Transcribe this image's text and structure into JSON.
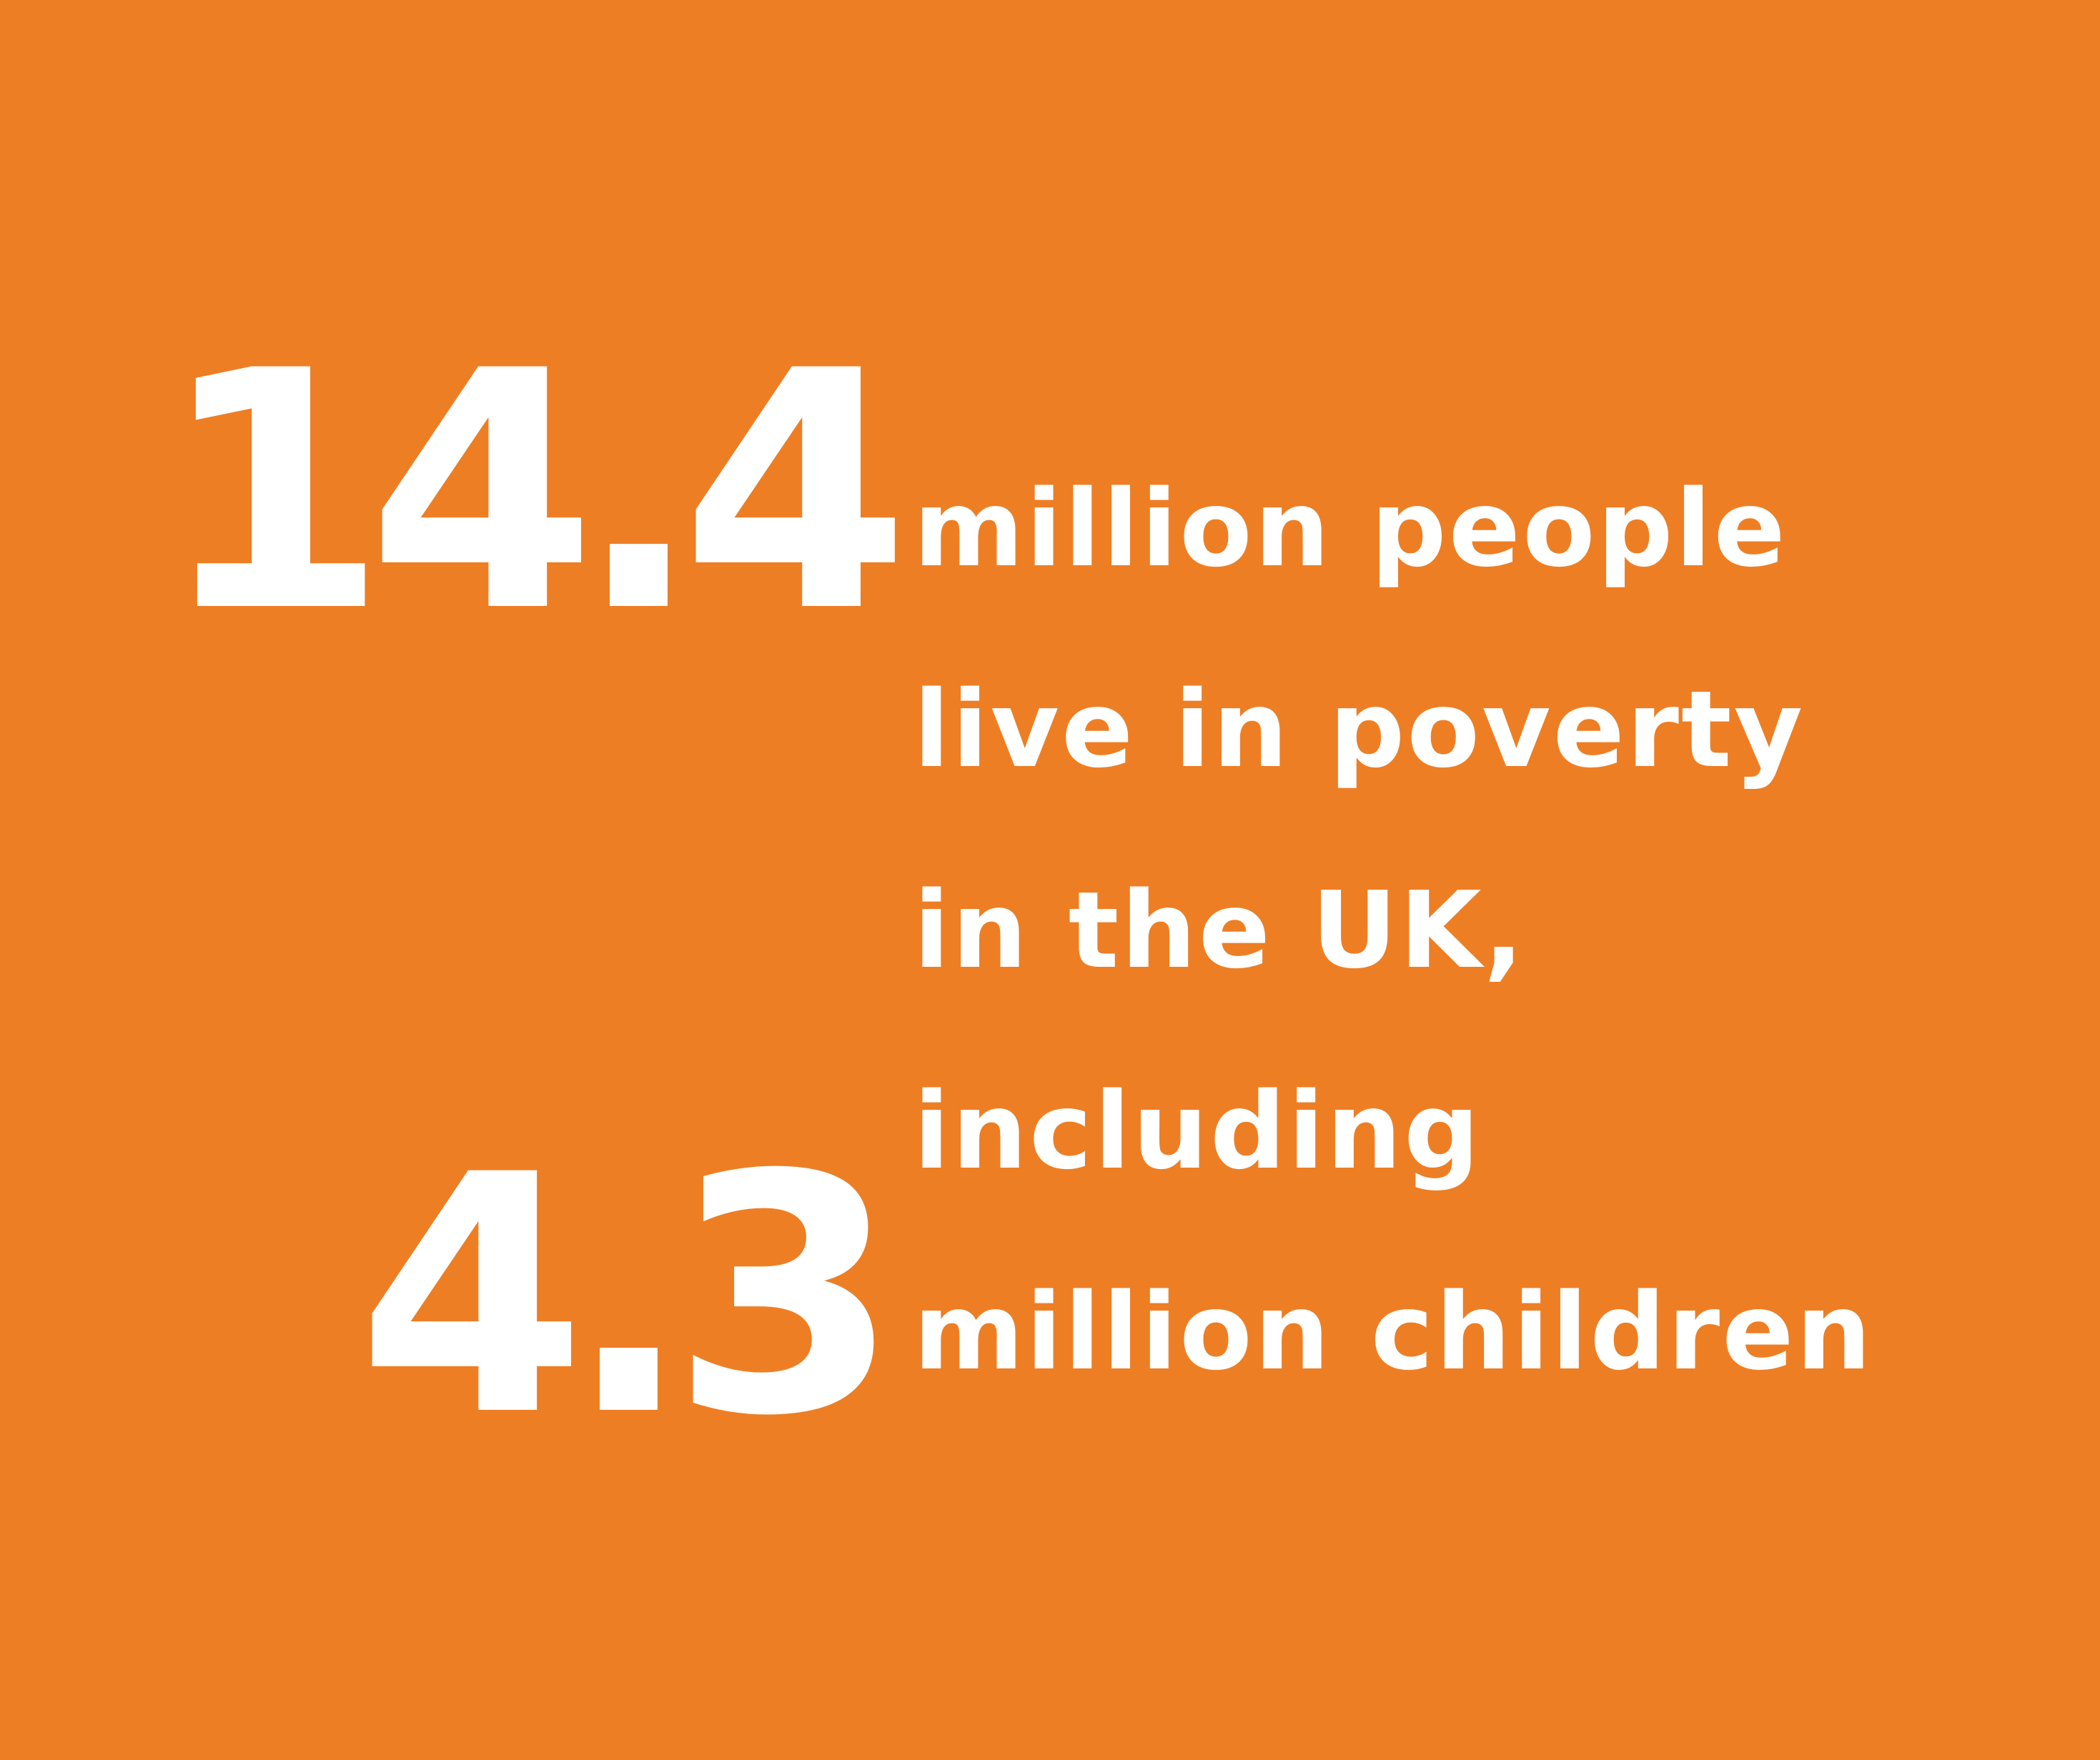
{
  "background_color": "#EE7E24",
  "text_color": "#FFFFFF",
  "stats": {
    "total_people": "14.4",
    "children": "4.3"
  },
  "caption": {
    "lines": [
      "million people",
      "live in poverty",
      "in the UK,",
      "including",
      "million children"
    ]
  }
}
